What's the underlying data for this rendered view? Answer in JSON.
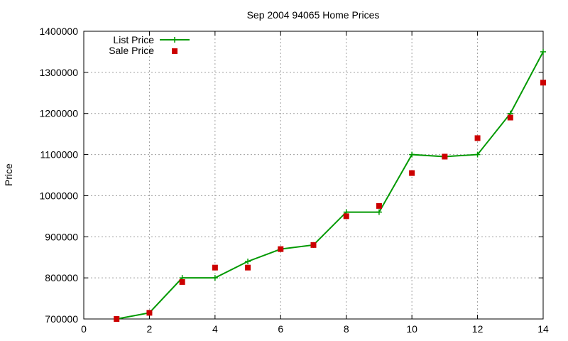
{
  "chart_data": {
    "type": "scatter",
    "title": "Sep 2004 94065 Home Prices",
    "xlabel": "",
    "ylabel": "Price",
    "xlim": [
      0,
      14
    ],
    "ylim": [
      700000,
      1400000
    ],
    "x_ticks": [
      0,
      2,
      4,
      6,
      8,
      10,
      12,
      14
    ],
    "y_ticks": [
      700000,
      800000,
      900000,
      1000000,
      1100000,
      1200000,
      1300000,
      1400000
    ],
    "grid": true,
    "legend_position": "top-left",
    "series": [
      {
        "name": "List Price",
        "style": "line+cross",
        "color": "#009900",
        "x": [
          1,
          2,
          3,
          4,
          5,
          6,
          7,
          8,
          9,
          10,
          11,
          12,
          13,
          14
        ],
        "y": [
          700000,
          715000,
          800000,
          800000,
          840000,
          870000,
          880000,
          960000,
          960000,
          1100000,
          1095000,
          1100000,
          1200000,
          1350000
        ]
      },
      {
        "name": "Sale Price",
        "style": "square",
        "color": "#cc0000",
        "x": [
          1,
          2,
          3,
          4,
          5,
          6,
          7,
          8,
          9,
          10,
          11,
          12,
          13,
          14
        ],
        "y": [
          700000,
          715000,
          790000,
          825000,
          825000,
          870000,
          880000,
          950000,
          975000,
          1055000,
          1095000,
          1140000,
          1190000,
          1275000
        ]
      }
    ]
  }
}
